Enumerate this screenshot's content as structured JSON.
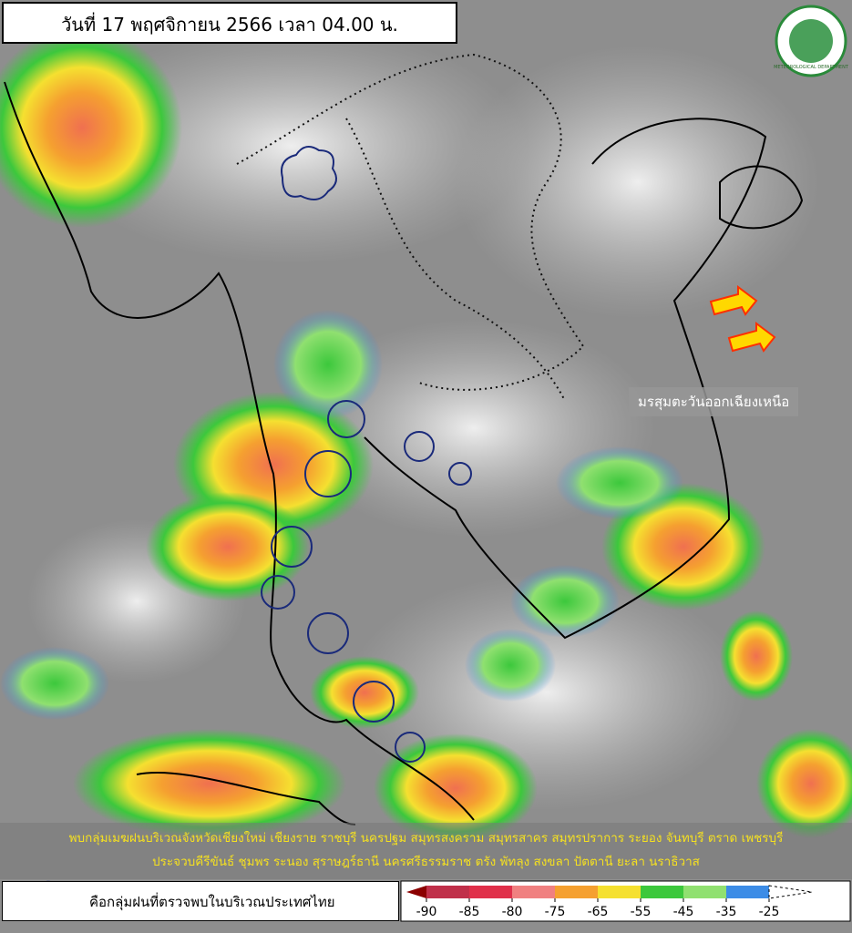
{
  "header": {
    "title": "วันที่ 17 พฤศจิกายน 2566 เวลา 04.00 น.",
    "logo_text": "METEOROLOGICAL DEPARTMENT"
  },
  "annotation": "มรสุมตะวันออกเฉียงเหนือ",
  "footer": {
    "lines": [
      "พบกลุ่มเมฆฝนบริเวณจังหวัดเชียงใหม่ เชียงราย ราชบุรี นครปฐม สมุทรสงคราม สมุทรสาคร สมุทรปราการ ระยอง จันทบุรี ตราด เพชรบุรี",
      "ประจวบคีรีขันธ์ ชุมพร ระนอง สุราษฎร์ธานี นครศรีธรรมราช ตรัง พัทลุง สงขลา ปัตตานี ยะลา นราธิวาส"
    ],
    "legend": "คือกลุ่มฝนที่ตรวจพบในบริเวณประเทศไทย"
  },
  "colorbar": {
    "ticks": [
      -90,
      -85,
      -80,
      -75,
      -65,
      -55,
      -45,
      -35,
      -25
    ],
    "colors": [
      "#8b0000",
      "#c0304a",
      "#e0304a",
      "#f08080",
      "#f5a030",
      "#f5e030",
      "#3cc83c",
      "#90e070",
      "#3c8ce6",
      "#ffffff"
    ]
  }
}
